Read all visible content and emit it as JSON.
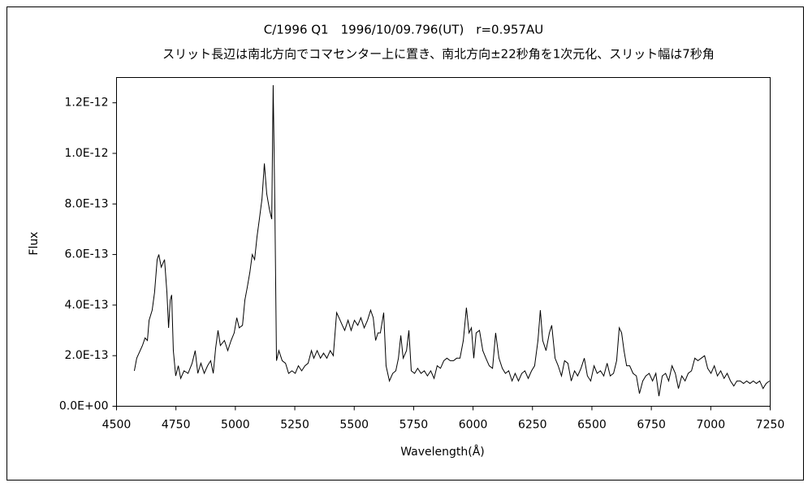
{
  "chart_data": {
    "type": "line",
    "title": "C/1996 Q1　1996/10/09.796(UT)　r=0.957AU",
    "subtitle": "スリット長辺は南北方向でコマセンター上に置き、南北方向±22秒角を1次元化、スリット幅は7秒角",
    "x_label": "Wavelength(Å)",
    "y_label": "Flux",
    "xlim": [
      4500,
      7250
    ],
    "xticks": [
      4500,
      4750,
      5000,
      5250,
      5500,
      5750,
      6000,
      6250,
      6500,
      6750,
      7000,
      7250
    ],
    "ylim": [
      0,
      1.3e-12
    ],
    "yticks": [
      {
        "value": 0,
        "label": "0.0E+00"
      },
      {
        "value": 2e-13,
        "label": "2.0E-13"
      },
      {
        "value": 4e-13,
        "label": "4.0E-13"
      },
      {
        "value": 6e-13,
        "label": "6.0E-13"
      },
      {
        "value": 8e-13,
        "label": "8.0E-13"
      },
      {
        "value": 1e-12,
        "label": "1.0E-12"
      },
      {
        "value": 1.2e-12,
        "label": "1.2E-12"
      }
    ],
    "grid": false,
    "color": "#000000",
    "x": [
      4575,
      4585,
      4609,
      4620,
      4630,
      4637,
      4650,
      4660,
      4671,
      4678,
      4688,
      4702,
      4712,
      4719,
      4726,
      4732,
      4739,
      4749,
      4760,
      4770,
      4784,
      4801,
      4818,
      4831,
      4842,
      4855,
      4869,
      4883,
      4896,
      4907,
      4917,
      4927,
      4937,
      4954,
      4968,
      4982,
      4995,
      5006,
      5016,
      5030,
      5040,
      5050,
      5061,
      5071,
      5081,
      5091,
      5101,
      5112,
      5122,
      5132,
      5143,
      5153,
      5159,
      5166,
      5173,
      5183,
      5197,
      5211,
      5224,
      5238,
      5252,
      5265,
      5279,
      5293,
      5306,
      5320,
      5330,
      5344,
      5358,
      5371,
      5385,
      5399,
      5412,
      5426,
      5436,
      5450,
      5460,
      5474,
      5487,
      5501,
      5515,
      5528,
      5542,
      5556,
      5569,
      5580,
      5590,
      5600,
      5610,
      5624,
      5634,
      5648,
      5662,
      5675,
      5686,
      5696,
      5706,
      5720,
      5730,
      5740,
      5754,
      5767,
      5781,
      5795,
      5808,
      5822,
      5836,
      5849,
      5863,
      5877,
      5890,
      5904,
      5918,
      5931,
      5945,
      5959,
      5972,
      5983,
      5993,
      6003,
      6013,
      6027,
      6041,
      6054,
      6068,
      6082,
      6095,
      6109,
      6123,
      6136,
      6150,
      6164,
      6177,
      6191,
      6205,
      6218,
      6232,
      6246,
      6259,
      6273,
      6283,
      6293,
      6307,
      6321,
      6331,
      6345,
      6358,
      6372,
      6385,
      6399,
      6413,
      6427,
      6440,
      6454,
      6468,
      6481,
      6495,
      6509,
      6522,
      6536,
      6550,
      6564,
      6577,
      6591,
      6604,
      6615,
      6625,
      6635,
      6646,
      6659,
      6673,
      6687,
      6700,
      6714,
      6727,
      6741,
      6755,
      6769,
      6782,
      6796,
      6810,
      6823,
      6837,
      6851,
      6864,
      6878,
      6892,
      6905,
      6919,
      6933,
      6946,
      6960,
      6974,
      6987,
      7001,
      7015,
      7028,
      7042,
      7056,
      7069,
      7083,
      7097,
      7110,
      7124,
      7138,
      7151,
      7165,
      7179,
      7192,
      7206,
      7220,
      7233,
      7247
    ],
    "values": [
      1.4e-13,
      1.9e-13,
      2.4e-13,
      2.7e-13,
      2.6e-13,
      3.4e-13,
      3.8e-13,
      4.5e-13,
      5.8e-13,
      6e-13,
      5.5e-13,
      5.8e-13,
      4.5e-13,
      3.1e-13,
      4.2e-13,
      4.4e-13,
      2.2e-13,
      1.2e-13,
      1.6e-13,
      1.1e-13,
      1.4e-13,
      1.3e-13,
      1.7e-13,
      2.2e-13,
      1.3e-13,
      1.7e-13,
      1.3e-13,
      1.6e-13,
      1.8e-13,
      1.3e-13,
      2.3e-13,
      3e-13,
      2.4e-13,
      2.6e-13,
      2.2e-13,
      2.6e-13,
      2.9e-13,
      3.5e-13,
      3.1e-13,
      3.2e-13,
      4.2e-13,
      4.7e-13,
      5.3e-13,
      6e-13,
      5.8e-13,
      6.7e-13,
      7.4e-13,
      8.2e-13,
      9.6e-13,
      8.4e-13,
      7.8e-13,
      7.4e-13,
      1.27e-12,
      8e-13,
      1.8e-13,
      2.2e-13,
      1.8e-13,
      1.7e-13,
      1.3e-13,
      1.4e-13,
      1.3e-13,
      1.6e-13,
      1.4e-13,
      1.6e-13,
      1.7e-13,
      2.2e-13,
      1.9e-13,
      2.2e-13,
      1.9e-13,
      2.1e-13,
      1.9e-13,
      2.2e-13,
      2e-13,
      3.7e-13,
      3.5e-13,
      3.2e-13,
      3e-13,
      3.4e-13,
      3e-13,
      3.4e-13,
      3.2e-13,
      3.5e-13,
      3.1e-13,
      3.4e-13,
      3.8e-13,
      3.5e-13,
      2.6e-13,
      2.9e-13,
      2.9e-13,
      3.7e-13,
      1.6e-13,
      1e-13,
      1.3e-13,
      1.4e-13,
      1.9e-13,
      2.8e-13,
      1.9e-13,
      2.2e-13,
      3e-13,
      1.4e-13,
      1.3e-13,
      1.5e-13,
      1.3e-13,
      1.4e-13,
      1.2e-13,
      1.4e-13,
      1.1e-13,
      1.6e-13,
      1.5e-13,
      1.8e-13,
      1.9e-13,
      1.8e-13,
      1.8e-13,
      1.9e-13,
      1.9e-13,
      2.6e-13,
      3.9e-13,
      2.9e-13,
      3.1e-13,
      1.9e-13,
      2.9e-13,
      3e-13,
      2.2e-13,
      1.9e-13,
      1.6e-13,
      1.5e-13,
      2.9e-13,
      1.9e-13,
      1.5e-13,
      1.3e-13,
      1.4e-13,
      1e-13,
      1.3e-13,
      1e-13,
      1.3e-13,
      1.4e-13,
      1.1e-13,
      1.4e-13,
      1.6e-13,
      2.6e-13,
      3.8e-13,
      2.6e-13,
      2.2e-13,
      2.9e-13,
      3.2e-13,
      1.9e-13,
      1.6e-13,
      1.2e-13,
      1.8e-13,
      1.7e-13,
      1e-13,
      1.4e-13,
      1.2e-13,
      1.5e-13,
      1.9e-13,
      1.2e-13,
      1e-13,
      1.6e-13,
      1.3e-13,
      1.4e-13,
      1.2e-13,
      1.7e-13,
      1.2e-13,
      1.3e-13,
      1.8e-13,
      3.1e-13,
      2.9e-13,
      2.2e-13,
      1.6e-13,
      1.6e-13,
      1.3e-13,
      1.2e-13,
      5e-14,
      1e-13,
      1.2e-13,
      1.3e-13,
      1e-13,
      1.3e-13,
      4e-14,
      1.2e-13,
      1.3e-13,
      1e-13,
      1.6e-13,
      1.3e-13,
      7e-14,
      1.2e-13,
      1e-13,
      1.3e-13,
      1.4e-13,
      1.9e-13,
      1.8e-13,
      1.9e-13,
      2e-13,
      1.5e-13,
      1.3e-13,
      1.6e-13,
      1.2e-13,
      1.4e-13,
      1.1e-13,
      1.3e-13,
      1e-13,
      8e-14,
      1e-13,
      1e-13,
      9e-14,
      1e-13,
      9e-14,
      1e-13,
      9e-14,
      1e-13,
      7e-14,
      9e-14,
      1e-13
    ]
  }
}
